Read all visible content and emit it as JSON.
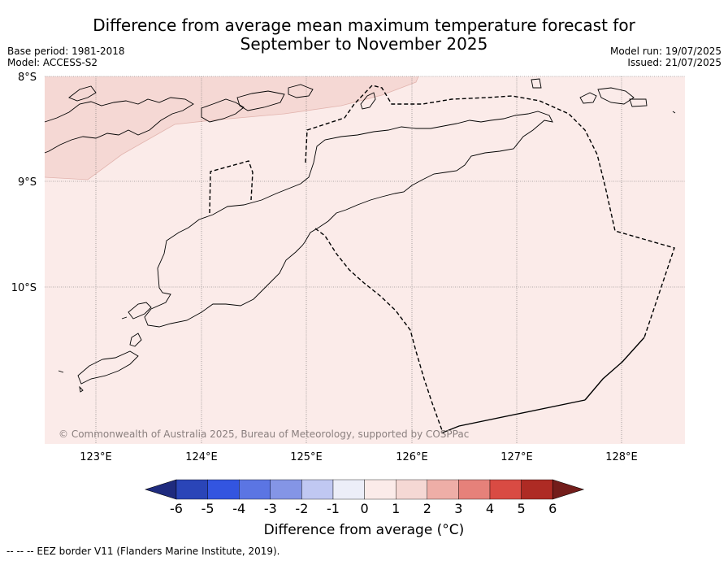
{
  "title": {
    "line1": "Difference from average mean maximum temperature forecast for",
    "line2": "September to November 2025"
  },
  "meta": {
    "base_period": "Base period: 1981-2018",
    "model": "Model: ACCESS-S2",
    "model_run": "Model run: 19/07/2025",
    "issued": "Issued: 21/07/2025"
  },
  "map": {
    "lat_labels": [
      "8°S",
      "9°S",
      "10°S"
    ],
    "lon_labels": [
      "123°E",
      "124°E",
      "125°E",
      "126°E",
      "127°E",
      "128°E"
    ],
    "copyright": "© Commonwealth of Australia 2025, Bureau of Meteorology, supported by COSPPac",
    "colors": {
      "band_0_1": "#fbebe9",
      "band_1_2": "#f5d8d4",
      "border": "#000000"
    }
  },
  "colorbar": {
    "ticks": [
      "-6",
      "-5",
      "-4",
      "-3",
      "-2",
      "-1",
      "0",
      "1",
      "2",
      "3",
      "4",
      "5",
      "6"
    ],
    "colors": [
      "#1f2b7e",
      "#2a45b8",
      "#3355e0",
      "#5b75e3",
      "#8495e6",
      "#c0c8f2",
      "#eceef8",
      "#fbebe9",
      "#f5d8d4",
      "#eeaea7",
      "#e6817a",
      "#d94b43",
      "#ae2b24",
      "#731d1b"
    ],
    "label": "Difference from average (°C)"
  },
  "footer": "--  --  -- EEZ border V11 (Flanders Marine Institute, 2019)."
}
